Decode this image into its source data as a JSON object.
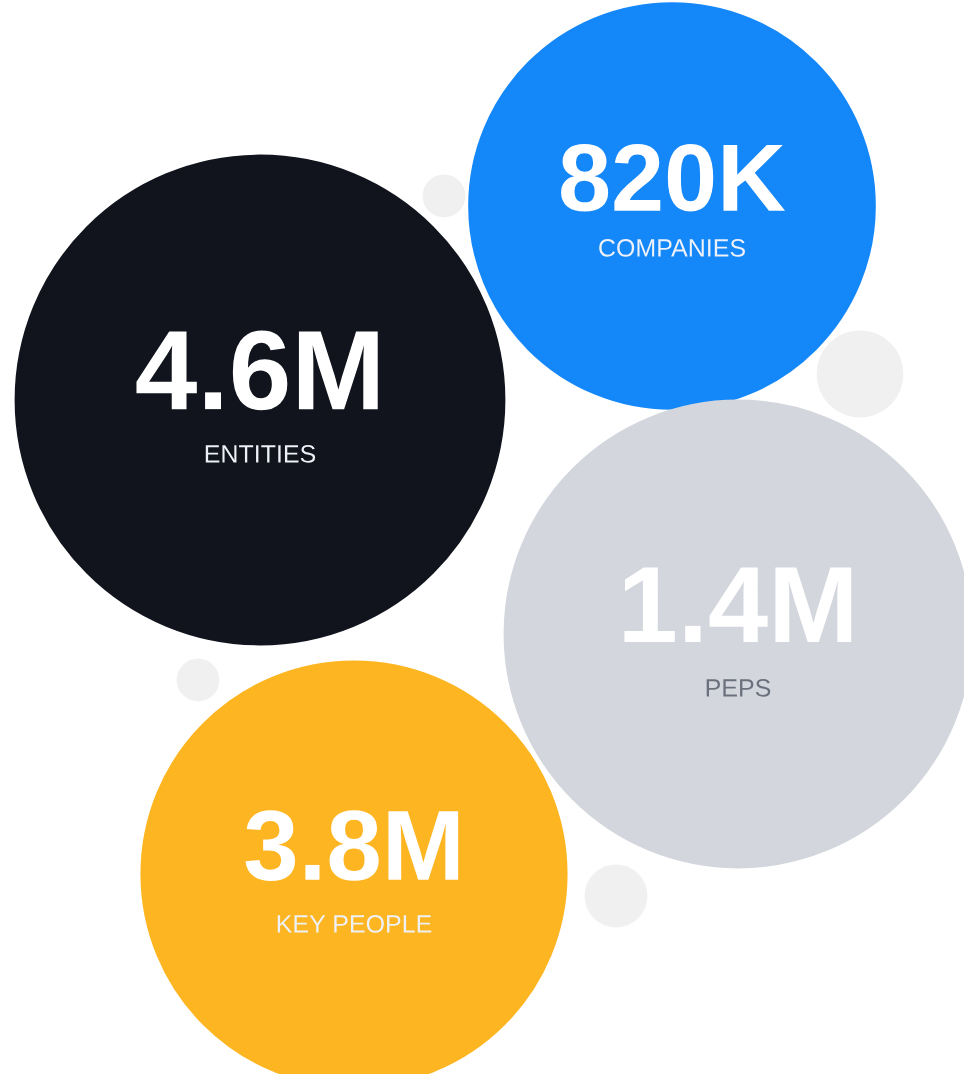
{
  "chart_data": {
    "type": "other",
    "categories": [
      "ENTITIES",
      "COMPANIES",
      "PEPS",
      "KEY PEOPLE"
    ],
    "values": [
      4600000,
      820000,
      1400000,
      3800000
    ],
    "value_labels": [
      "4.6M",
      "820K",
      "1.4M",
      "3.8M"
    ],
    "colors": [
      "#11141d",
      "#1487f9",
      "#d3d6dc",
      "#fdb521"
    ]
  }
}
